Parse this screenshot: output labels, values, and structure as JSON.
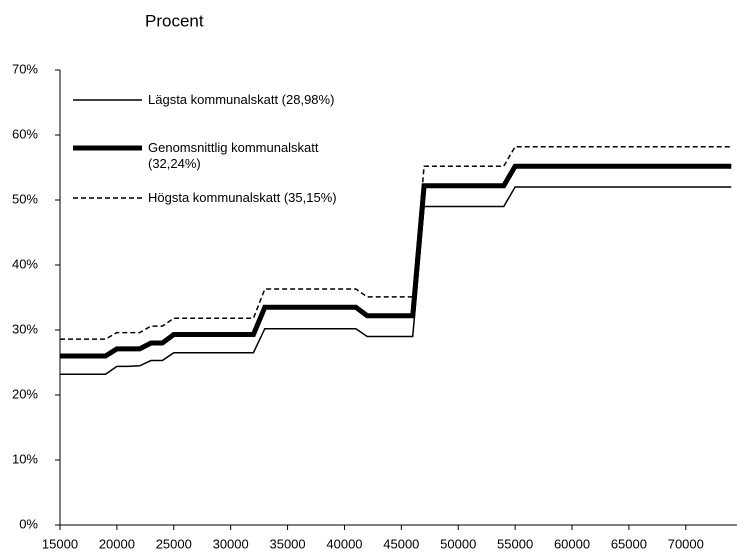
{
  "chart_data": {
    "type": "line",
    "title": "Procent",
    "x": [
      15000,
      16000,
      17000,
      18000,
      19000,
      20000,
      21000,
      22000,
      23000,
      24000,
      25000,
      26000,
      27000,
      28000,
      29000,
      30000,
      31000,
      32000,
      33000,
      34000,
      35000,
      36000,
      37000,
      38000,
      39000,
      40000,
      41000,
      42000,
      43000,
      44000,
      45000,
      46000,
      47000,
      48000,
      49000,
      50000,
      51000,
      52000,
      53000,
      54000,
      55000,
      56000,
      57000,
      58000,
      59000,
      60000,
      61000,
      62000,
      63000,
      64000,
      65000,
      66000,
      67000,
      68000,
      69000,
      70000,
      71000,
      72000,
      73000,
      74000
    ],
    "series": [
      {
        "name": "Lägsta kommunalskatt (28,98%)",
        "color": "#000000",
        "line_width": 1.5,
        "dash": "none",
        "values": [
          23.2,
          23.2,
          23.2,
          23.2,
          23.2,
          24.4,
          24.4,
          24.5,
          25.3,
          25.3,
          26.5,
          26.5,
          26.5,
          26.5,
          26.5,
          26.5,
          26.5,
          26.5,
          30.2,
          30.2,
          30.2,
          30.2,
          30.2,
          30.2,
          30.2,
          30.2,
          30.2,
          29.0,
          29.0,
          29.0,
          29.0,
          29.0,
          49.0,
          49.0,
          49.0,
          49.0,
          49.0,
          49.0,
          49.0,
          49.0,
          52.0,
          52.0,
          52.0,
          52.0,
          52.0,
          52.0,
          52.0,
          52.0,
          52.0,
          52.0,
          52.0,
          52.0,
          52.0,
          52.0,
          52.0,
          52.0,
          52.0,
          52.0,
          52.0,
          52.0
        ]
      },
      {
        "name": "Genomsnittlig kommunalskatt (32,24%)",
        "color": "#000000",
        "line_width": 5,
        "dash": "none",
        "values": [
          26.0,
          26.0,
          26.0,
          26.0,
          26.0,
          27.1,
          27.1,
          27.1,
          28.0,
          28.0,
          29.3,
          29.3,
          29.3,
          29.3,
          29.3,
          29.3,
          29.3,
          29.3,
          33.5,
          33.5,
          33.5,
          33.5,
          33.5,
          33.5,
          33.5,
          33.5,
          33.5,
          32.2,
          32.2,
          32.2,
          32.2,
          32.2,
          52.2,
          52.2,
          52.2,
          52.2,
          52.2,
          52.2,
          52.2,
          52.2,
          55.2,
          55.2,
          55.2,
          55.2,
          55.2,
          55.2,
          55.2,
          55.2,
          55.2,
          55.2,
          55.2,
          55.2,
          55.2,
          55.2,
          55.2,
          55.2,
          55.2,
          55.2,
          55.2,
          55.2
        ]
      },
      {
        "name": "Högsta kommunalskatt (35,15%)",
        "color": "#000000",
        "line_width": 1.5,
        "dash": "5,3",
        "values": [
          28.6,
          28.6,
          28.6,
          28.6,
          28.6,
          29.6,
          29.6,
          29.6,
          30.6,
          30.6,
          31.8,
          31.8,
          31.8,
          31.8,
          31.8,
          31.8,
          31.8,
          31.8,
          36.3,
          36.3,
          36.3,
          36.3,
          36.3,
          36.3,
          36.3,
          36.3,
          36.3,
          35.1,
          35.1,
          35.1,
          35.1,
          35.1,
          55.2,
          55.2,
          55.2,
          55.2,
          55.2,
          55.2,
          55.2,
          55.2,
          58.2,
          58.2,
          58.2,
          58.2,
          58.2,
          58.2,
          58.2,
          58.2,
          58.2,
          58.2,
          58.2,
          58.2,
          58.2,
          58.2,
          58.2,
          58.2,
          58.2,
          58.2,
          58.2,
          58.2
        ]
      }
    ],
    "xlim": [
      15000,
      74500
    ],
    "xticks": [
      15000,
      20000,
      25000,
      30000,
      35000,
      40000,
      45000,
      50000,
      55000,
      60000,
      65000,
      70000
    ],
    "ylim": [
      0,
      70
    ],
    "yticks": [
      {
        "value": 0,
        "label": "0%"
      },
      {
        "value": 10,
        "label": "10%"
      },
      {
        "value": 20,
        "label": "20%"
      },
      {
        "value": 30,
        "label": "30%"
      },
      {
        "value": 40,
        "label": "40%"
      },
      {
        "value": 50,
        "label": "50%"
      },
      {
        "value": 60,
        "label": "60%"
      },
      {
        "value": 70,
        "label": "70%"
      }
    ],
    "grid": false,
    "legend": "upper left"
  }
}
